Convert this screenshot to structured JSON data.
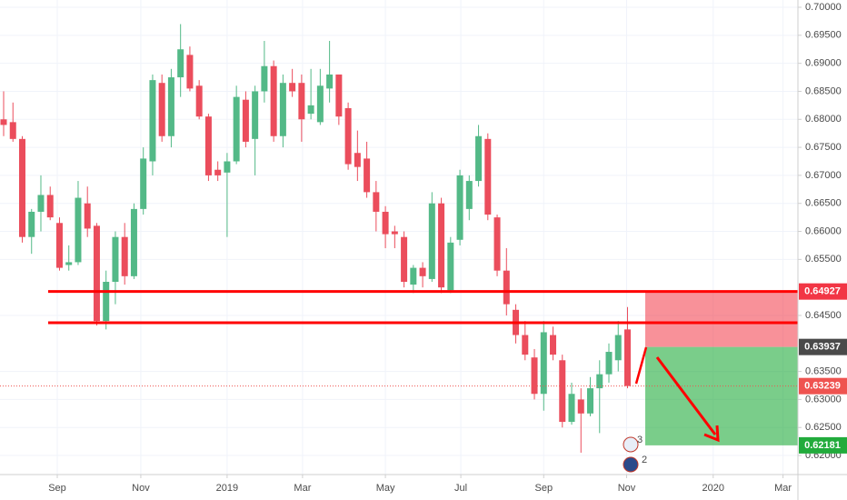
{
  "chart_data": {
    "type": "candlestick",
    "candles": [
      [
        0.68,
        0.685,
        0.677,
        0.679
      ],
      [
        0.6795,
        0.683,
        0.676,
        0.6765
      ],
      [
        0.6765,
        0.677,
        0.658,
        0.659
      ],
      [
        0.659,
        0.664,
        0.656,
        0.6635
      ],
      [
        0.6635,
        0.67,
        0.66,
        0.6665
      ],
      [
        0.6665,
        0.668,
        0.662,
        0.6625
      ],
      [
        0.6615,
        0.6625,
        0.653,
        0.6535
      ],
      [
        0.654,
        0.6575,
        0.653,
        0.6545
      ],
      [
        0.6545,
        0.669,
        0.654,
        0.666
      ],
      [
        0.665,
        0.668,
        0.659,
        0.6605
      ],
      [
        0.661,
        0.6615,
        0.6432,
        0.644
      ],
      [
        0.644,
        0.653,
        0.6425,
        0.651
      ],
      [
        0.651,
        0.66,
        0.647,
        0.659
      ],
      [
        0.659,
        0.6615,
        0.6505,
        0.652
      ],
      [
        0.652,
        0.665,
        0.6515,
        0.664
      ],
      [
        0.664,
        0.675,
        0.663,
        0.673
      ],
      [
        0.6725,
        0.688,
        0.67,
        0.687
      ],
      [
        0.6865,
        0.688,
        0.676,
        0.677
      ],
      [
        0.677,
        0.689,
        0.675,
        0.6875
      ],
      [
        0.6875,
        0.697,
        0.684,
        0.6925
      ],
      [
        0.6915,
        0.693,
        0.685,
        0.6855
      ],
      [
        0.686,
        0.687,
        0.68,
        0.6805
      ],
      [
        0.6805,
        0.681,
        0.669,
        0.67
      ],
      [
        0.671,
        0.6725,
        0.669,
        0.67
      ],
      [
        0.6705,
        0.674,
        0.659,
        0.6725
      ],
      [
        0.6725,
        0.686,
        0.672,
        0.684
      ],
      [
        0.6835,
        0.685,
        0.675,
        0.676
      ],
      [
        0.6765,
        0.686,
        0.67,
        0.685
      ],
      [
        0.685,
        0.694,
        0.683,
        0.6895
      ],
      [
        0.6895,
        0.6905,
        0.676,
        0.677
      ],
      [
        0.677,
        0.688,
        0.675,
        0.6865
      ],
      [
        0.6865,
        0.689,
        0.684,
        0.685
      ],
      [
        0.6865,
        0.688,
        0.676,
        0.68
      ],
      [
        0.681,
        0.689,
        0.68,
        0.6825
      ],
      [
        0.6795,
        0.689,
        0.679,
        0.686
      ],
      [
        0.6855,
        0.694,
        0.683,
        0.688
      ],
      [
        0.688,
        0.688,
        0.679,
        0.6805
      ],
      [
        0.682,
        0.683,
        0.671,
        0.672
      ],
      [
        0.674,
        0.678,
        0.669,
        0.6715
      ],
      [
        0.673,
        0.676,
        0.666,
        0.667
      ],
      [
        0.667,
        0.669,
        0.66,
        0.6635
      ],
      [
        0.6635,
        0.6645,
        0.657,
        0.6595
      ],
      [
        0.66,
        0.661,
        0.657,
        0.6595
      ],
      [
        0.659,
        0.66,
        0.65,
        0.651
      ],
      [
        0.6505,
        0.654,
        0.649,
        0.6535
      ],
      [
        0.6535,
        0.6545,
        0.65,
        0.652
      ],
      [
        0.6515,
        0.667,
        0.651,
        0.665
      ],
      [
        0.665,
        0.666,
        0.649,
        0.65
      ],
      [
        0.6495,
        0.659,
        0.649,
        0.658
      ],
      [
        0.6585,
        0.671,
        0.6575,
        0.67
      ],
      [
        0.664,
        0.67,
        0.662,
        0.669
      ],
      [
        0.669,
        0.679,
        0.668,
        0.677
      ],
      [
        0.6765,
        0.6775,
        0.662,
        0.663
      ],
      [
        0.6625,
        0.663,
        0.652,
        0.653
      ],
      [
        0.653,
        0.657,
        0.645,
        0.647
      ],
      [
        0.646,
        0.647,
        0.64,
        0.6415
      ],
      [
        0.6415,
        0.644,
        0.637,
        0.638
      ],
      [
        0.6375,
        0.639,
        0.63,
        0.631
      ],
      [
        0.631,
        0.644,
        0.628,
        0.642
      ],
      [
        0.6415,
        0.643,
        0.637,
        0.638
      ],
      [
        0.637,
        0.638,
        0.625,
        0.626
      ],
      [
        0.626,
        0.633,
        0.6255,
        0.631
      ],
      [
        0.63,
        0.632,
        0.6205,
        0.6275
      ],
      [
        0.6275,
        0.634,
        0.627,
        0.632
      ],
      [
        0.632,
        0.637,
        0.624,
        0.6345
      ],
      [
        0.6345,
        0.64,
        0.633,
        0.6385
      ],
      [
        0.637,
        0.644,
        0.635,
        0.6415
      ],
      [
        0.6425,
        0.6465,
        0.632,
        0.6324
      ]
    ],
    "up_color": "#53b987",
    "down_color": "#eb4d5c",
    "xlim": [
      -0.39,
      85.3
    ],
    "xticks": [
      {
        "value": 5.76,
        "label": "Sep"
      },
      {
        "value": 14.73,
        "label": "Nov"
      },
      {
        "value": 24.0,
        "label": "2019"
      },
      {
        "value": 32.1,
        "label": "Mar"
      },
      {
        "value": 41.0,
        "label": "May"
      },
      {
        "value": 49.1,
        "label": "Jul"
      },
      {
        "value": 58.0,
        "label": "Sep"
      },
      {
        "value": 66.9,
        "label": "Nov"
      },
      {
        "value": 76.2,
        "label": "2020"
      },
      {
        "value": 83.7,
        "label": "Mar"
      }
    ],
    "ylim": [
      0.6166,
      0.7013
    ],
    "yticks": [
      {
        "value": 0.7,
        "label": "0.70000"
      },
      {
        "value": 0.695,
        "label": "0.69500"
      },
      {
        "value": 0.69,
        "label": "0.69000"
      },
      {
        "value": 0.685,
        "label": "0.68500"
      },
      {
        "value": 0.68,
        "label": "0.68000"
      },
      {
        "value": 0.675,
        "label": "0.67500"
      },
      {
        "value": 0.67,
        "label": "0.67000"
      },
      {
        "value": 0.665,
        "label": "0.66500"
      },
      {
        "value": 0.66,
        "label": "0.66000"
      },
      {
        "value": 0.655,
        "label": "0.65500"
      },
      {
        "value": 0.645,
        "label": "0.64500"
      },
      {
        "value": 0.635,
        "label": "0.63500"
      },
      {
        "value": 0.63,
        "label": "0.63000"
      },
      {
        "value": 0.625,
        "label": "0.62500"
      },
      {
        "value": 0.62,
        "label": "0.62000"
      }
    ],
    "grid": true,
    "levels": [
      0.64927,
      0.6437
    ],
    "level_color": "#ff0000",
    "last_price": 0.63239,
    "last_price_color": "#ef5350",
    "position": {
      "stop": 0.64927,
      "entry": 0.63937,
      "target": 0.62181,
      "stop_color": "#f23645",
      "entry_color": "#4a4a4a",
      "target_color": "#22ab3c"
    },
    "events": [
      3,
      2
    ]
  }
}
